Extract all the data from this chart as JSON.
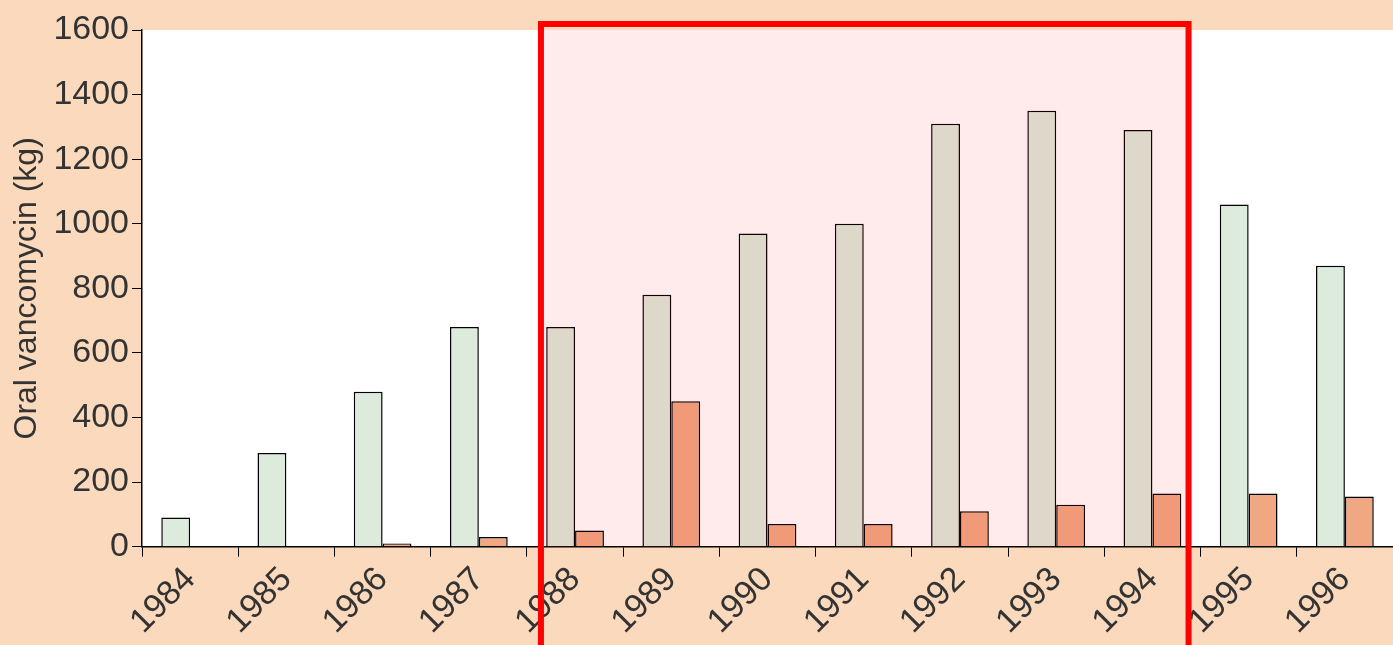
{
  "chart_data": {
    "type": "bar",
    "ylabel": "Oral vancomycin (kg)",
    "categories": [
      "1984",
      "1985",
      "1986",
      "1987",
      "1988",
      "1989",
      "1990",
      "1991",
      "1992",
      "1993",
      "1994",
      "1995",
      "1996"
    ],
    "series": [
      {
        "color": "#dcebdc",
        "values": [
          90,
          290,
          480,
          680,
          680,
          780,
          970,
          1000,
          1310,
          1350,
          1290,
          1060,
          870
        ]
      },
      {
        "color": "#f0a882",
        "values": [
          0,
          0,
          10,
          30,
          50,
          450,
          70,
          70,
          110,
          130,
          165,
          165,
          155
        ]
      }
    ],
    "ylim": [
      0,
      1600
    ],
    "yticks": [
      0,
      200,
      400,
      600,
      800,
      1000,
      1200,
      1400,
      1600
    ],
    "grid": false,
    "legend": false,
    "bands": [
      {
        "axis": "x",
        "from": "1988",
        "to": "1994",
        "color": "#ff0000"
      }
    ]
  }
}
